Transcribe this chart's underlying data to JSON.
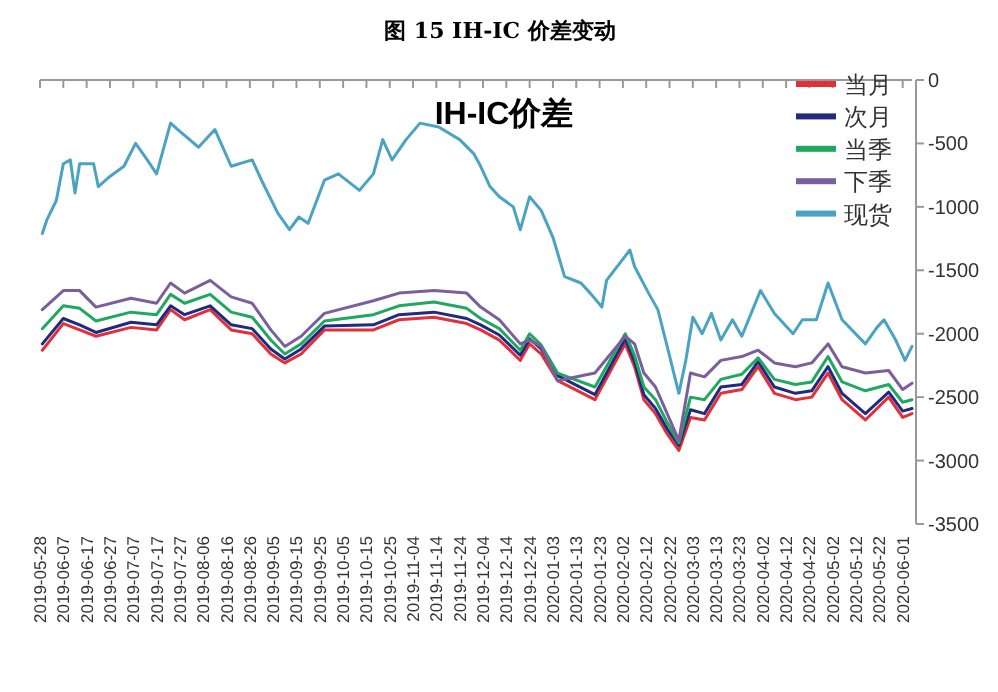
{
  "chart_data": {
    "type": "line",
    "title": "图 15 IH-IC 价差变动",
    "subtitle": "IH-IC价差",
    "xlim": [
      "2019-05-28",
      "2020-06-05"
    ],
    "xticks": [
      "2019-05-28",
      "2019-06-07",
      "2019-06-17",
      "2019-06-27",
      "2019-07-07",
      "2019-07-17",
      "2019-07-27",
      "2019-08-06",
      "2019-08-16",
      "2019-08-26",
      "2019-09-05",
      "2019-09-15",
      "2019-09-25",
      "2019-10-05",
      "2019-10-15",
      "2019-10-25",
      "2019-11-04",
      "2019-11-14",
      "2019-11-24",
      "2019-12-04",
      "2019-12-14",
      "2019-12-24",
      "2020-01-03",
      "2020-01-13",
      "2020-01-23",
      "2020-02-02",
      "2020-02-12",
      "2020-02-22",
      "2020-03-03",
      "2020-03-13",
      "2020-03-23",
      "2020-04-02",
      "2020-04-12",
      "2020-04-22",
      "2020-05-02",
      "2020-05-12",
      "2020-05-22",
      "2020-06-01"
    ],
    "ylim": [
      -3500,
      0
    ],
    "yticks": [
      0,
      -500,
      -1000,
      -1500,
      -2000,
      -2500,
      -3000,
      -3500
    ],
    "grid": false,
    "legend": "top right",
    "marker": "none",
    "line_style": "solid",
    "x": [
      "2019-05-29",
      "2019-06-07",
      "2019-06-14",
      "2019-06-21",
      "2019-07-06",
      "2019-07-17",
      "2019-07-23",
      "2019-07-29",
      "2019-08-09",
      "2019-08-18",
      "2019-08-27",
      "2019-09-04",
      "2019-09-10",
      "2019-09-17",
      "2019-09-27",
      "2019-10-18",
      "2019-10-29",
      "2019-11-13",
      "2019-11-27",
      "2019-12-03",
      "2019-12-11",
      "2019-12-20",
      "2019-12-24",
      "2019-12-29",
      "2020-01-05",
      "2020-01-21",
      "2020-02-03",
      "2020-02-07",
      "2020-02-11",
      "2020-02-16",
      "2020-02-21",
      "2020-02-26",
      "2020-03-02",
      "2020-03-08",
      "2020-03-15",
      "2020-03-24",
      "2020-03-31",
      "2020-04-07",
      "2020-04-16",
      "2020-04-23",
      "2020-04-30",
      "2020-05-06",
      "2020-05-16",
      "2020-05-26",
      "2020-06-01",
      "2020-06-05"
    ],
    "series": [
      {
        "name": "当月",
        "color": "#e0303a",
        "values": [
          -2130,
          -1920,
          -1970,
          -2020,
          -1950,
          -1970,
          -1810,
          -1890,
          -1810,
          -1970,
          -2000,
          -2160,
          -2230,
          -2160,
          -1970,
          -1970,
          -1890,
          -1870,
          -1920,
          -1970,
          -2050,
          -2210,
          -2080,
          -2160,
          -2370,
          -2520,
          -2080,
          -2260,
          -2520,
          -2630,
          -2790,
          -2920,
          -2660,
          -2680,
          -2470,
          -2440,
          -2260,
          -2470,
          -2520,
          -2500,
          -2310,
          -2520,
          -2680,
          -2500,
          -2660,
          -2630
        ]
      },
      {
        "name": "次月",
        "color": "#1f2a80",
        "values": [
          -2080,
          -1880,
          -1930,
          -1990,
          -1910,
          -1930,
          -1780,
          -1850,
          -1780,
          -1930,
          -1960,
          -2120,
          -2200,
          -2120,
          -1940,
          -1930,
          -1850,
          -1830,
          -1880,
          -1930,
          -2010,
          -2170,
          -2040,
          -2120,
          -2330,
          -2480,
          -2040,
          -2220,
          -2480,
          -2590,
          -2750,
          -2880,
          -2600,
          -2630,
          -2420,
          -2400,
          -2220,
          -2420,
          -2470,
          -2450,
          -2260,
          -2470,
          -2630,
          -2460,
          -2610,
          -2590
        ]
      },
      {
        "name": "当季",
        "color": "#20a860",
        "values": [
          -1960,
          -1780,
          -1800,
          -1900,
          -1830,
          -1850,
          -1690,
          -1760,
          -1690,
          -1830,
          -1870,
          -2050,
          -2160,
          -2080,
          -1900,
          -1850,
          -1780,
          -1750,
          -1800,
          -1880,
          -1960,
          -2130,
          -2000,
          -2090,
          -2310,
          -2420,
          -2000,
          -2170,
          -2420,
          -2520,
          -2700,
          -2860,
          -2500,
          -2520,
          -2360,
          -2320,
          -2190,
          -2360,
          -2400,
          -2380,
          -2180,
          -2380,
          -2450,
          -2400,
          -2540,
          -2520
        ]
      },
      {
        "name": "下季",
        "color": "#7b5f9c",
        "values": [
          -1810,
          -1660,
          -1660,
          -1790,
          -1720,
          -1760,
          -1600,
          -1680,
          -1580,
          -1710,
          -1760,
          -1970,
          -2100,
          -2020,
          -1840,
          -1740,
          -1680,
          -1660,
          -1680,
          -1790,
          -1890,
          -2080,
          -2050,
          -2100,
          -2370,
          -2310,
          -2020,
          -2080,
          -2310,
          -2420,
          -2630,
          -2840,
          -2310,
          -2340,
          -2210,
          -2180,
          -2130,
          -2230,
          -2260,
          -2230,
          -2080,
          -2260,
          -2310,
          -2290,
          -2440,
          -2390
        ]
      },
      {
        "name": "现货",
        "color": "#4ba3c3",
        "x": [
          "2019-05-29",
          "2019-05-31",
          "2019-06-04",
          "2019-06-07",
          "2019-06-10",
          "2019-06-12",
          "2019-06-14",
          "2019-06-20",
          "2019-06-22",
          "2019-06-27",
          "2019-07-03",
          "2019-07-08",
          "2019-07-13",
          "2019-07-17",
          "2019-07-23",
          "2019-07-26",
          "2019-08-04",
          "2019-08-11",
          "2019-08-18",
          "2019-08-27",
          "2019-08-31",
          "2019-09-07",
          "2019-09-12",
          "2019-09-16",
          "2019-09-20",
          "2019-09-27",
          "2019-10-03",
          "2019-10-12",
          "2019-10-18",
          "2019-10-22",
          "2019-10-26",
          "2019-11-01",
          "2019-11-07",
          "2019-11-15",
          "2019-11-24",
          "2019-11-30",
          "2019-12-03",
          "2019-12-07",
          "2019-12-11",
          "2019-12-17",
          "2019-12-20",
          "2019-12-24",
          "2019-12-29",
          "2020-01-03",
          "2020-01-08",
          "2020-01-15",
          "2020-01-19",
          "2020-01-24",
          "2020-01-26",
          "2020-02-05",
          "2020-02-07",
          "2020-02-13",
          "2020-02-17",
          "2020-02-21",
          "2020-02-26",
          "2020-02-29",
          "2020-03-03",
          "2020-03-07",
          "2020-03-11",
          "2020-03-15",
          "2020-03-20",
          "2020-03-24",
          "2020-04-01",
          "2020-04-07",
          "2020-04-15",
          "2020-04-19",
          "2020-04-25",
          "2020-04-30",
          "2020-05-06",
          "2020-05-16",
          "2020-05-21",
          "2020-05-24",
          "2020-05-29",
          "2020-06-02",
          "2020-06-05"
        ],
        "values": [
          -1210,
          -1100,
          -950,
          -660,
          -630,
          -890,
          -660,
          -660,
          -840,
          -760,
          -680,
          -500,
          -630,
          -740,
          -340,
          -390,
          -530,
          -390,
          -680,
          -630,
          -790,
          -1050,
          -1180,
          -1080,
          -1130,
          -790,
          -740,
          -870,
          -740,
          -470,
          -630,
          -470,
          -340,
          -370,
          -470,
          -580,
          -680,
          -840,
          -920,
          -1000,
          -1180,
          -920,
          -1030,
          -1240,
          -1550,
          -1600,
          -1680,
          -1790,
          -1580,
          -1340,
          -1470,
          -1680,
          -1810,
          -2100,
          -2470,
          -2210,
          -1870,
          -2000,
          -1840,
          -2050,
          -1890,
          -2020,
          -1660,
          -1840,
          -2000,
          -1890,
          -1890,
          -1600,
          -1890,
          -2080,
          -1950,
          -1890,
          -2050,
          -2210,
          -2100
        ]
      }
    ]
  }
}
